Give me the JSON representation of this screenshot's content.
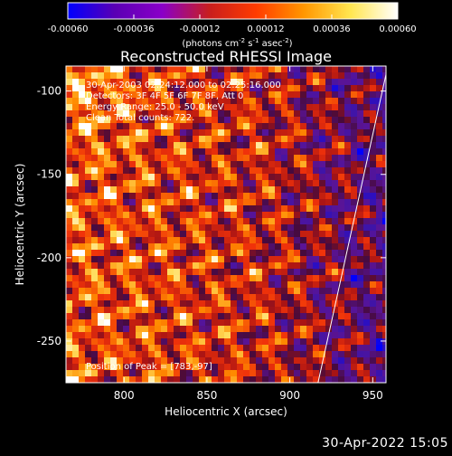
{
  "chart_data": {
    "type": "heatmap",
    "title": "Reconstructed RHESSI Image",
    "xlabel": "Heliocentric X (arcsec)",
    "ylabel": "Heliocentric Y (arcsec)",
    "xlim": [
      765,
      958
    ],
    "ylim": [
      -275,
      -85
    ],
    "x_ticks": [
      800,
      850,
      900,
      950
    ],
    "y_ticks": [
      -100,
      -150,
      -200,
      -250
    ],
    "colorbar": {
      "min": -0.0006,
      "max": 0.0006,
      "ticks": [
        "-0.00060",
        "-0.00036",
        "-0.00012",
        "0.00012",
        "0.00036",
        "0.00060"
      ],
      "label_main": "(photons cm",
      "label_exp1": "-2",
      "label_mid1": " s",
      "label_exp2": "-1",
      "label_mid2": " asec",
      "label_exp3": "-2",
      "label_end": ")",
      "colors": [
        "#0000ff",
        "#5a00b4",
        "#8a00c8",
        "#c81e1e",
        "#ff3c00",
        "#ff9600",
        "#ffe650",
        "#ffffff"
      ]
    },
    "annotations": [
      "30-Apr-2003 02:24:12.000 to 02:25:16.000",
      "Detectors: 3F 4F 5F 6F 7F 8F, Att 0",
      "Energy Range: 25.0 - 50.0 keV",
      "Clean     Total counts: 722."
    ],
    "peak_label": "Position of Peak = [783,-97]",
    "peak": [
      783,
      -97
    ],
    "limb_line": [
      [
        917,
        -275
      ],
      [
        958,
        -90
      ]
    ]
  },
  "footer": {
    "timestamp": "30-Apr-2022 15:05"
  }
}
